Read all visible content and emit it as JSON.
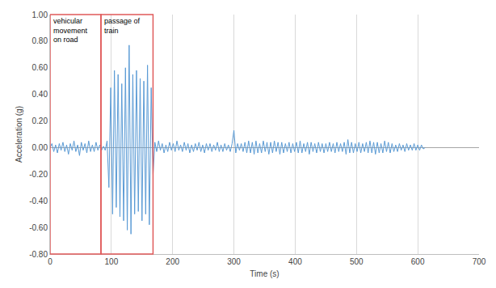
{
  "chart_data": {
    "type": "line",
    "x_label": "Time (s)",
    "y_label": "Acceleration (g)",
    "color": "#5b9bd5",
    "grid": true,
    "xlim": [
      0,
      700
    ],
    "xticks": [
      0,
      100,
      200,
      300,
      400,
      500,
      600,
      700
    ],
    "ylim": [
      -0.8,
      1.0
    ],
    "yticks": [
      {
        "value": -0.8,
        "label": "-0.80"
      },
      {
        "value": -0.6,
        "label": "-0.60"
      },
      {
        "value": -0.4,
        "label": "-0.40"
      },
      {
        "value": -0.2,
        "label": "-0.20"
      },
      {
        "value": 0,
        "label": "0.00"
      },
      {
        "value": 0.2,
        "label": "0.20"
      },
      {
        "value": 0.4,
        "label": "0.40"
      },
      {
        "value": 0.6,
        "label": "0.60"
      },
      {
        "value": 0.8,
        "label": "0.80"
      },
      {
        "value": 1.0,
        "label": "1.00"
      }
    ],
    "annotations": [
      {
        "text": "vehicular movement on road",
        "x0": 0,
        "x1": 83
      },
      {
        "text": "passage of train",
        "x0": 83,
        "x1": 168
      }
    ],
    "x": [
      0,
      3,
      6,
      9,
      12,
      15,
      18,
      21,
      24,
      27,
      30,
      33,
      36,
      39,
      42,
      45,
      48,
      51,
      54,
      57,
      60,
      63,
      66,
      69,
      72,
      75,
      78,
      81,
      84,
      87,
      90,
      93,
      96,
      99,
      102,
      105,
      108,
      111,
      114,
      117,
      120,
      123,
      126,
      129,
      132,
      135,
      138,
      141,
      144,
      147,
      150,
      153,
      156,
      159,
      162,
      165,
      168,
      171,
      174,
      177,
      180,
      183,
      186,
      189,
      192,
      195,
      198,
      201,
      204,
      207,
      210,
      213,
      216,
      219,
      222,
      225,
      228,
      231,
      234,
      237,
      240,
      243,
      246,
      249,
      252,
      255,
      258,
      261,
      264,
      267,
      270,
      273,
      276,
      279,
      282,
      285,
      288,
      291,
      294,
      297,
      300,
      303,
      306,
      309,
      312,
      315,
      318,
      321,
      324,
      327,
      330,
      333,
      336,
      339,
      342,
      345,
      348,
      351,
      354,
      357,
      360,
      363,
      366,
      369,
      372,
      375,
      378,
      381,
      384,
      387,
      390,
      393,
      396,
      399,
      402,
      405,
      408,
      411,
      414,
      417,
      420,
      423,
      426,
      429,
      432,
      435,
      438,
      441,
      444,
      447,
      450,
      453,
      456,
      459,
      462,
      465,
      468,
      471,
      474,
      477,
      480,
      483,
      486,
      489,
      492,
      495,
      498,
      501,
      504,
      507,
      510,
      513,
      516,
      519,
      522,
      525,
      528,
      531,
      534,
      537,
      540,
      543,
      546,
      549,
      552,
      555,
      558,
      561,
      564,
      567,
      570,
      573,
      576,
      579,
      582,
      585,
      588,
      591,
      594,
      597,
      600,
      603,
      606,
      609,
      612
    ],
    "values": [
      0.0,
      0.03,
      -0.03,
      0.02,
      -0.04,
      0.03,
      -0.02,
      0.04,
      -0.03,
      0.02,
      -0.05,
      0.03,
      -0.02,
      0.05,
      -0.03,
      0.02,
      -0.06,
      0.04,
      -0.02,
      0.03,
      -0.04,
      0.05,
      -0.03,
      0.02,
      -0.03,
      0.04,
      -0.02,
      0.02,
      -0.02,
      0.01,
      -0.02,
      0.05,
      -0.3,
      0.45,
      -0.5,
      0.58,
      -0.45,
      0.55,
      -0.52,
      0.48,
      -0.55,
      0.6,
      -0.62,
      0.77,
      -0.65,
      0.55,
      -0.5,
      0.58,
      -0.48,
      0.52,
      -0.55,
      0.5,
      -0.5,
      0.62,
      -0.58,
      0.45,
      -0.2,
      0.04,
      -0.03,
      0.05,
      -0.02,
      0.03,
      -0.04,
      0.02,
      -0.03,
      0.04,
      -0.02,
      0.03,
      -0.03,
      0.05,
      -0.02,
      0.02,
      -0.03,
      0.04,
      -0.02,
      0.03,
      -0.04,
      0.02,
      -0.03,
      0.03,
      -0.02,
      0.04,
      -0.03,
      0.02,
      -0.04,
      0.03,
      -0.02,
      0.03,
      -0.03,
      0.02,
      -0.02,
      0.04,
      -0.03,
      0.02,
      -0.03,
      0.03,
      -0.02,
      0.02,
      -0.03,
      0.03,
      0.13,
      -0.04,
      0.03,
      -0.02,
      0.03,
      -0.03,
      0.04,
      -0.04,
      0.05,
      -0.04,
      0.04,
      -0.05,
      0.05,
      -0.04,
      0.03,
      -0.04,
      0.05,
      -0.03,
      0.04,
      -0.05,
      0.04,
      -0.04,
      0.05,
      -0.03,
      0.04,
      -0.05,
      0.04,
      -0.04,
      0.03,
      -0.03,
      0.04,
      -0.04,
      0.03,
      -0.03,
      0.04,
      -0.04,
      0.05,
      -0.04,
      0.03,
      -0.03,
      0.04,
      -0.05,
      0.04,
      -0.03,
      0.03,
      -0.04,
      0.04,
      -0.03,
      0.03,
      -0.04,
      0.03,
      -0.03,
      0.04,
      -0.03,
      0.03,
      -0.04,
      0.04,
      -0.03,
      0.03,
      -0.03,
      0.04,
      -0.05,
      0.06,
      -0.04,
      0.04,
      -0.04,
      0.03,
      -0.03,
      0.04,
      -0.04,
      0.03,
      -0.03,
      0.04,
      -0.04,
      0.05,
      -0.04,
      0.04,
      -0.05,
      0.04,
      -0.04,
      0.03,
      -0.04,
      0.05,
      -0.03,
      0.04,
      -0.04,
      0.03,
      -0.03,
      0.02,
      -0.03,
      0.03,
      -0.02,
      0.02,
      -0.03,
      0.03,
      -0.02,
      0.02,
      -0.02,
      0.03,
      -0.02,
      0.02,
      -0.02,
      0.02,
      -0.01,
      0.0
    ]
  }
}
